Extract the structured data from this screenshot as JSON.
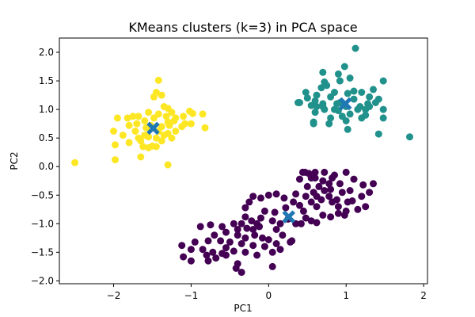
{
  "chart_data": {
    "type": "scatter",
    "title": "KMeans clusters (k=3) in PCA space",
    "xlabel": "PC1",
    "ylabel": "PC2",
    "xlim": [
      -2.7,
      2.05
    ],
    "ylim": [
      -2.05,
      2.25
    ],
    "xticks": [
      -2,
      -1,
      0,
      1,
      2
    ],
    "xtick_labels": [
      "−2",
      "−1",
      "0",
      "1",
      "2"
    ],
    "yticks": [
      -2.0,
      -1.5,
      -1.0,
      -0.5,
      0.0,
      0.5,
      1.0,
      1.5,
      2.0
    ],
    "ytick_labels": [
      "−2.0",
      "−1.5",
      "−1.0",
      "−0.5",
      "0.0",
      "0.5",
      "1.0",
      "1.5",
      "2.0"
    ],
    "grid": false,
    "colors": {
      "cluster_0": "#440154",
      "cluster_1": "#21918c",
      "cluster_2": "#fde725",
      "centroid": "#1f77b4"
    },
    "series": [
      {
        "cluster": 0,
        "points": [
          [
            0.44,
            -0.1
          ],
          [
            0.47,
            -0.1
          ],
          [
            0.52,
            -0.12
          ],
          [
            0.6,
            -0.1
          ],
          [
            0.72,
            -0.1
          ],
          [
            0.85,
            -0.15
          ],
          [
            1.0,
            -0.1
          ],
          [
            0.55,
            -0.2
          ],
          [
            0.7,
            -0.25
          ],
          [
            0.4,
            -0.22
          ],
          [
            0.65,
            -0.35
          ],
          [
            0.92,
            -0.3
          ],
          [
            1.1,
            -0.22
          ],
          [
            1.22,
            -0.32
          ],
          [
            0.8,
            -0.4
          ],
          [
            0.95,
            -0.45
          ],
          [
            0.78,
            -0.52
          ],
          [
            0.72,
            -0.42
          ],
          [
            0.68,
            -0.58
          ],
          [
            0.58,
            -0.45
          ],
          [
            0.48,
            -0.52
          ],
          [
            0.35,
            -0.48
          ],
          [
            0.32,
            -0.62
          ],
          [
            0.4,
            -0.68
          ],
          [
            0.1,
            -0.48
          ],
          [
            0.0,
            -0.5
          ],
          [
            -0.1,
            -0.55
          ],
          [
            -0.2,
            -0.52
          ],
          [
            0.2,
            -0.55
          ],
          [
            0.55,
            -0.62
          ],
          [
            0.62,
            -0.7
          ],
          [
            0.82,
            -0.62
          ],
          [
            0.9,
            -0.7
          ],
          [
            1.02,
            -0.62
          ],
          [
            1.0,
            -0.78
          ],
          [
            1.2,
            -0.52
          ],
          [
            1.25,
            -0.7
          ],
          [
            1.35,
            -0.3
          ],
          [
            0.7,
            -0.85
          ],
          [
            0.48,
            -0.9
          ],
          [
            0.62,
            -0.98
          ],
          [
            0.8,
            -0.88
          ],
          [
            0.9,
            -0.82
          ],
          [
            0.98,
            -0.85
          ],
          [
            0.45,
            -0.78
          ],
          [
            0.22,
            -0.72
          ],
          [
            0.08,
            -0.8
          ],
          [
            -0.05,
            -0.78
          ],
          [
            -0.25,
            -0.62
          ],
          [
            -0.3,
            -0.72
          ],
          [
            -0.45,
            -1.0
          ],
          [
            -0.3,
            -0.88
          ],
          [
            -0.22,
            -0.95
          ],
          [
            -0.1,
            -0.9
          ],
          [
            -0.15,
            -1.0
          ],
          [
            0.05,
            -0.95
          ],
          [
            0.15,
            -1.0
          ],
          [
            0.25,
            -0.92
          ],
          [
            0.35,
            -1.0
          ],
          [
            0.1,
            -1.1
          ],
          [
            0.18,
            -1.2
          ],
          [
            -0.35,
            -1.0
          ],
          [
            -0.4,
            -1.1
          ],
          [
            -0.28,
            -1.08
          ],
          [
            -0.2,
            -1.1
          ],
          [
            -0.12,
            -1.05
          ],
          [
            -0.6,
            -1.05
          ],
          [
            -0.75,
            -1.02
          ],
          [
            -0.7,
            -1.2
          ],
          [
            -0.88,
            -1.05
          ],
          [
            -0.55,
            -1.15
          ],
          [
            -0.4,
            -1.2
          ],
          [
            -0.3,
            -1.25
          ],
          [
            -0.18,
            -1.2
          ],
          [
            -0.08,
            -1.25
          ],
          [
            -0.62,
            -1.3
          ],
          [
            -0.78,
            -1.3
          ],
          [
            -0.85,
            -1.45
          ],
          [
            -0.95,
            -1.32
          ],
          [
            -0.5,
            -1.32
          ],
          [
            -0.35,
            -1.35
          ],
          [
            -0.2,
            -1.38
          ],
          [
            -0.05,
            -1.4
          ],
          [
            0.0,
            -1.28
          ],
          [
            0.1,
            -1.35
          ],
          [
            0.3,
            -1.3
          ],
          [
            -0.55,
            -1.42
          ],
          [
            -0.3,
            -1.5
          ],
          [
            -0.15,
            -1.55
          ],
          [
            0.05,
            -1.5
          ],
          [
            0.15,
            -1.45
          ],
          [
            -0.45,
            -1.48
          ],
          [
            -0.55,
            -1.55
          ],
          [
            -0.68,
            -1.6
          ],
          [
            -0.8,
            -1.55
          ],
          [
            -0.78,
            -1.65
          ],
          [
            -1.0,
            -1.45
          ],
          [
            -1.12,
            -1.38
          ],
          [
            -1.1,
            -1.58
          ],
          [
            -1.0,
            -1.65
          ],
          [
            -0.4,
            -1.7
          ],
          [
            -0.42,
            -1.78
          ],
          [
            -0.35,
            -1.85
          ],
          [
            0.05,
            -1.75
          ],
          [
            -0.6,
            -1.52
          ],
          [
            -0.72,
            -1.5
          ],
          [
            0.28,
            -1.32
          ],
          [
            0.55,
            -0.95
          ],
          [
            0.42,
            -1.0
          ],
          [
            1.08,
            -0.6
          ],
          [
            1.15,
            -0.75
          ],
          [
            1.05,
            -0.42
          ],
          [
            0.88,
            -0.58
          ],
          [
            0.62,
            -0.52
          ],
          [
            0.78,
            -0.3
          ],
          [
            0.5,
            -0.35
          ],
          [
            0.6,
            -0.2
          ],
          [
            0.82,
            -0.2
          ],
          [
            1.3,
            -0.45
          ]
        ]
      },
      {
        "cluster": 1,
        "points": [
          [
            1.12,
            2.07
          ],
          [
            0.98,
            1.75
          ],
          [
            0.7,
            1.65
          ],
          [
            0.9,
            1.62
          ],
          [
            0.92,
            1.5
          ],
          [
            0.72,
            1.48
          ],
          [
            0.75,
            1.42
          ],
          [
            0.68,
            1.38
          ],
          [
            1.05,
            1.55
          ],
          [
            1.1,
            1.32
          ],
          [
            1.2,
            1.3
          ],
          [
            1.35,
            1.35
          ],
          [
            1.48,
            1.5
          ],
          [
            0.48,
            1.3
          ],
          [
            0.5,
            1.2
          ],
          [
            0.4,
            1.12
          ],
          [
            0.6,
            1.15
          ],
          [
            0.62,
            1.25
          ],
          [
            0.8,
            1.22
          ],
          [
            0.85,
            1.3
          ],
          [
            1.02,
            1.28
          ],
          [
            1.3,
            1.22
          ],
          [
            1.42,
            1.18
          ],
          [
            1.28,
            1.1
          ],
          [
            1.38,
            1.12
          ],
          [
            1.48,
            1.0
          ],
          [
            0.38,
            1.12
          ],
          [
            0.55,
            1.07
          ],
          [
            0.62,
            1.05
          ],
          [
            0.7,
            1.05
          ],
          [
            0.72,
            1.0
          ],
          [
            0.85,
            1.0
          ],
          [
            0.9,
            0.98
          ],
          [
            1.0,
            1.05
          ],
          [
            1.15,
            1.0
          ],
          [
            1.18,
            1.05
          ],
          [
            1.25,
            1.0
          ],
          [
            0.6,
            0.95
          ],
          [
            0.95,
            0.88
          ],
          [
            1.05,
            0.92
          ],
          [
            1.25,
            0.9
          ],
          [
            0.8,
            0.85
          ],
          [
            0.58,
            0.75
          ],
          [
            0.58,
            0.78
          ],
          [
            0.78,
            0.75
          ],
          [
            1.0,
            0.8
          ],
          [
            1.2,
            0.85
          ],
          [
            1.48,
            0.85
          ],
          [
            0.7,
            1.1
          ],
          [
            1.42,
            0.57
          ],
          [
            1.02,
            0.65
          ],
          [
            1.82,
            0.52
          ],
          [
            0.92,
            1.12
          ],
          [
            1.1,
            1.18
          ],
          [
            1.3,
            1.05
          ],
          [
            0.88,
            1.1
          ]
        ]
      },
      {
        "cluster": 2,
        "points": [
          [
            -1.42,
            1.51
          ],
          [
            -1.45,
            1.3
          ],
          [
            -1.38,
            1.25
          ],
          [
            -1.48,
            1.22
          ],
          [
            -1.35,
            1.05
          ],
          [
            -1.3,
            1.02
          ],
          [
            -1.02,
            0.97
          ],
          [
            -0.98,
            0.93
          ],
          [
            -1.25,
            0.95
          ],
          [
            -1.1,
            0.88
          ],
          [
            -0.85,
            0.92
          ],
          [
            -1.2,
            0.85
          ],
          [
            -1.48,
            0.85
          ],
          [
            -1.42,
            0.92
          ],
          [
            -1.55,
            0.95
          ],
          [
            -1.68,
            0.88
          ],
          [
            -1.75,
            0.88
          ],
          [
            -1.82,
            0.85
          ],
          [
            -1.95,
            0.85
          ],
          [
            -1.6,
            0.8
          ],
          [
            -1.7,
            0.75
          ],
          [
            -1.8,
            0.72
          ],
          [
            -1.3,
            0.78
          ],
          [
            -1.28,
            0.72
          ],
          [
            -1.38,
            0.7
          ],
          [
            -1.08,
            0.75
          ],
          [
            -1.12,
            0.7
          ],
          [
            -1.0,
            0.75
          ],
          [
            -1.2,
            0.62
          ],
          [
            -1.3,
            0.58
          ],
          [
            -1.35,
            0.55
          ],
          [
            -1.45,
            0.5
          ],
          [
            -1.38,
            0.45
          ],
          [
            -1.25,
            0.5
          ],
          [
            -2.0,
            0.62
          ],
          [
            -1.88,
            0.55
          ],
          [
            -1.72,
            0.62
          ],
          [
            -1.6,
            0.55
          ],
          [
            -1.55,
            0.52
          ],
          [
            -1.65,
            0.45
          ],
          [
            -1.8,
            0.42
          ],
          [
            -1.98,
            0.38
          ],
          [
            -1.62,
            0.35
          ],
          [
            -1.55,
            0.33
          ],
          [
            -1.5,
            0.36
          ],
          [
            -1.45,
            0.35
          ],
          [
            -1.3,
            0.03
          ],
          [
            -1.98,
            0.12
          ],
          [
            -1.65,
            0.17
          ],
          [
            -2.5,
            0.07
          ],
          [
            -0.82,
            0.68
          ],
          [
            -1.58,
            0.68
          ],
          [
            -1.42,
            0.62
          ],
          [
            -1.22,
            0.8
          ],
          [
            -1.52,
            0.72
          ],
          [
            -1.68,
            0.5
          ],
          [
            -1.32,
            0.88
          ]
        ]
      }
    ],
    "centroids": [
      [
        0.26,
        -0.88
      ],
      [
        0.99,
        1.1
      ],
      [
        -1.49,
        0.67
      ]
    ]
  }
}
